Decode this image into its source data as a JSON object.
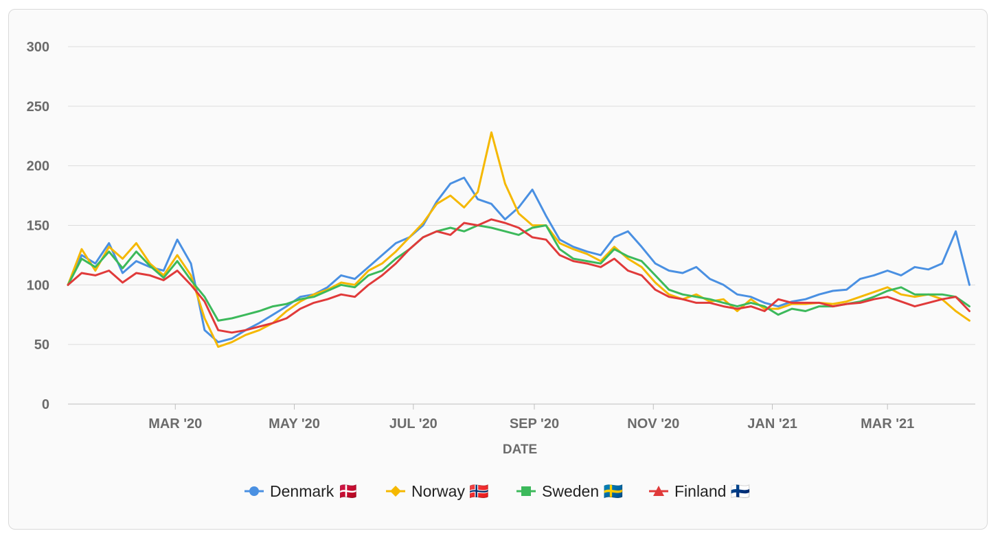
{
  "chart_data": {
    "type": "line",
    "title": "",
    "xlabel": "DATE",
    "ylabel": "",
    "ylim": [
      0,
      300
    ],
    "yticks": [
      0,
      50,
      100,
      150,
      200,
      250,
      300
    ],
    "xlim": [
      "2020-01-06",
      "2021-04-15"
    ],
    "xticks": [
      {
        "date": "2020-03-01",
        "label": "MAR '20"
      },
      {
        "date": "2020-05-01",
        "label": "MAY '20"
      },
      {
        "date": "2020-07-01",
        "label": "JUL '20"
      },
      {
        "date": "2020-09-01",
        "label": "SEP '20"
      },
      {
        "date": "2020-11-01",
        "label": "NOV '20"
      },
      {
        "date": "2021-01-01",
        "label": "JAN '21"
      },
      {
        "date": "2021-03-01",
        "label": "MAR '21"
      }
    ],
    "grid": true,
    "legend_position": "bottom",
    "x": [
      "2020-01-06",
      "2020-01-13",
      "2020-01-20",
      "2020-01-27",
      "2020-02-03",
      "2020-02-10",
      "2020-02-17",
      "2020-02-24",
      "2020-03-02",
      "2020-03-09",
      "2020-03-16",
      "2020-03-23",
      "2020-03-30",
      "2020-04-06",
      "2020-04-13",
      "2020-04-20",
      "2020-04-27",
      "2020-05-04",
      "2020-05-11",
      "2020-05-18",
      "2020-05-25",
      "2020-06-01",
      "2020-06-08",
      "2020-06-15",
      "2020-06-22",
      "2020-06-29",
      "2020-07-06",
      "2020-07-13",
      "2020-07-20",
      "2020-07-27",
      "2020-08-03",
      "2020-08-10",
      "2020-08-17",
      "2020-08-24",
      "2020-08-31",
      "2020-09-07",
      "2020-09-14",
      "2020-09-21",
      "2020-09-28",
      "2020-10-05",
      "2020-10-12",
      "2020-10-19",
      "2020-10-26",
      "2020-11-02",
      "2020-11-09",
      "2020-11-16",
      "2020-11-23",
      "2020-11-30",
      "2020-12-07",
      "2020-12-14",
      "2020-12-21",
      "2020-12-28",
      "2021-01-04",
      "2021-01-11",
      "2021-01-18",
      "2021-01-25",
      "2021-02-01",
      "2021-02-08",
      "2021-02-15",
      "2021-02-22",
      "2021-03-01",
      "2021-03-08",
      "2021-03-15",
      "2021-03-22",
      "2021-03-29",
      "2021-04-05",
      "2021-04-12"
    ],
    "series": [
      {
        "name": "Denmark 🇩🇰",
        "color": "#4a90e2",
        "marker": "circle",
        "values": [
          100,
          125,
          118,
          135,
          110,
          120,
          115,
          112,
          138,
          118,
          62,
          52,
          55,
          62,
          68,
          75,
          82,
          90,
          92,
          98,
          108,
          105,
          115,
          125,
          135,
          140,
          150,
          170,
          185,
          190,
          172,
          168,
          155,
          165,
          180,
          158,
          138,
          132,
          128,
          125,
          140,
          145,
          132,
          118,
          112,
          110,
          115,
          105,
          100,
          92,
          90,
          85,
          82,
          86,
          88,
          92,
          95,
          96,
          105,
          108,
          112,
          108,
          115,
          113,
          118,
          145,
          100
        ]
      },
      {
        "name": "Norway 🇳🇴",
        "color": "#f5b800",
        "marker": "diamond",
        "values": [
          100,
          130,
          112,
          132,
          122,
          135,
          118,
          108,
          125,
          108,
          72,
          48,
          52,
          58,
          62,
          68,
          78,
          86,
          92,
          96,
          102,
          100,
          112,
          118,
          128,
          140,
          152,
          168,
          175,
          165,
          178,
          228,
          185,
          160,
          150,
          150,
          135,
          130,
          126,
          120,
          132,
          122,
          115,
          102,
          92,
          88,
          92,
          86,
          88,
          78,
          88,
          80,
          80,
          84,
          84,
          85,
          84,
          86,
          90,
          94,
          98,
          92,
          90,
          92,
          88,
          78,
          70
        ]
      },
      {
        "name": "Sweden 🇸🇪",
        "color": "#3cb95b",
        "marker": "square",
        "values": [
          100,
          122,
          115,
          128,
          114,
          128,
          116,
          106,
          120,
          104,
          90,
          70,
          72,
          75,
          78,
          82,
          84,
          88,
          90,
          95,
          100,
          98,
          108,
          112,
          122,
          130,
          140,
          145,
          148,
          145,
          150,
          148,
          145,
          142,
          148,
          150,
          130,
          122,
          120,
          118,
          130,
          124,
          120,
          108,
          96,
          92,
          90,
          88,
          85,
          82,
          85,
          82,
          75,
          80,
          78,
          82,
          82,
          84,
          86,
          90,
          95,
          98,
          92,
          92,
          92,
          90,
          82
        ]
      },
      {
        "name": "Finland 🇫🇮",
        "color": "#e03a3a",
        "marker": "triangle",
        "values": [
          100,
          110,
          108,
          112,
          102,
          110,
          108,
          104,
          112,
          100,
          86,
          62,
          60,
          62,
          65,
          68,
          72,
          80,
          85,
          88,
          92,
          90,
          100,
          108,
          118,
          130,
          140,
          145,
          142,
          152,
          150,
          155,
          152,
          148,
          140,
          138,
          125,
          120,
          118,
          115,
          122,
          112,
          108,
          96,
          90,
          88,
          85,
          85,
          82,
          80,
          82,
          78,
          88,
          85,
          85,
          85,
          82,
          84,
          85,
          88,
          90,
          86,
          82,
          85,
          88,
          90,
          78
        ]
      }
    ]
  }
}
